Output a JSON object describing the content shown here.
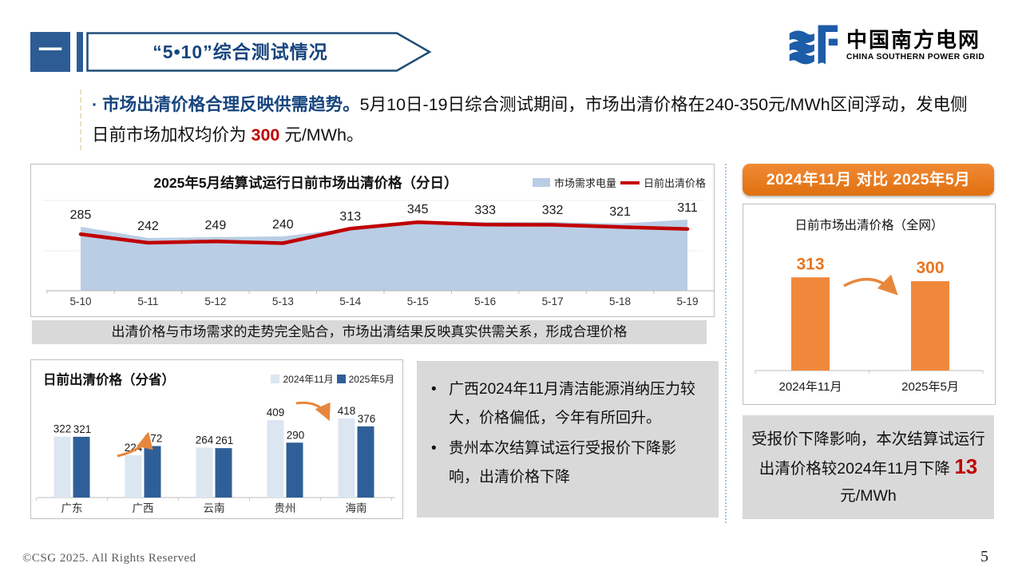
{
  "colors": {
    "dark_blue": "#17457E",
    "marker_blue": "#2D5C94",
    "brand_blue": "#1C5CA8",
    "red": "#C00000",
    "area_blue": "#B9CDE5",
    "bar_light": "#DCE6F1",
    "bar_dark": "#2F5F98",
    "orange": "#ED7D31",
    "orange_bar": "#F0883B",
    "arrow_orange": "#E8873C",
    "gray_box": "#D9D9D9"
  },
  "header": {
    "index_marker": "一",
    "title": "“5•10”综合测试情况"
  },
  "logo": {
    "name_zh": "中国南方电网",
    "name_en": "CHINA SOUTHERN POWER GRID"
  },
  "intro": {
    "bullet": "·",
    "lead": "市场出清价格合理反映供需趋势。",
    "text_before": "5月10日-19日综合测试期间，市场出清价格在240-350元/MWh区间浮动，发电侧日前市场加权均价为 ",
    "highlight_value": "300",
    "text_after": " 元/MWh。"
  },
  "strip_note": "出清价格与市场需求的走势完全贴合，市场出清结果反映真实供需关系，形成合理价格",
  "analysis": {
    "bullets": [
      "广西2024年11月清洁能源消纳压力较大，价格偏低，今年有所回升。",
      "贵州本次结算试运行受报价下降影响，出清价格下降"
    ]
  },
  "right_panel": {
    "banner": "2024年11月 对比 2025年5月",
    "conclusion_before": "受报价下降影响，本次结算试运行出清价格较2024年11月下降 ",
    "conclusion_value": "13",
    "conclusion_after": " 元/MWh"
  },
  "footer": {
    "copyright": "©CSG 2025. All Rights Reserved",
    "page_number": "5"
  },
  "chart_data": [
    {
      "id": "daily_clearing_price",
      "type": "area+line",
      "title": "2025年5月结算试运行日前市场出清价格（分日）",
      "categories": [
        "5-10",
        "5-11",
        "5-12",
        "5-13",
        "5-14",
        "5-15",
        "5-16",
        "5-17",
        "5-18",
        "5-19"
      ],
      "series": [
        {
          "name": "市场需求电量",
          "type": "area",
          "color": "#B9CDE5",
          "unlabeled": true,
          "values_estimated": [
            322,
            266,
            270,
            274,
            314,
            350,
            346,
            346,
            338,
            358
          ]
        },
        {
          "name": "日前出清价格",
          "type": "line",
          "color": "#C00000",
          "values": [
            285,
            242,
            249,
            240,
            313,
            345,
            333,
            332,
            321,
            311
          ]
        }
      ],
      "value_labels": "shown for 日前出清价格 (元/MWh)",
      "legend_position": "top-right",
      "grid": "faint horizontal"
    },
    {
      "id": "province_clearing_price",
      "type": "bar",
      "title": "日前出清价格（分省）",
      "categories": [
        "广东",
        "广西",
        "云南",
        "贵州",
        "海南"
      ],
      "series": [
        {
          "name": "2024年11月",
          "color": "#DCE6F1",
          "values": [
            322,
            224,
            264,
            409,
            418
          ]
        },
        {
          "name": "2025年5月",
          "color": "#2F5F98",
          "values": [
            321,
            272,
            261,
            290,
            376
          ]
        }
      ],
      "annotations": [
        {
          "type": "arrow-up",
          "category": "广西"
        },
        {
          "type": "arrow-down",
          "category": "贵州"
        }
      ],
      "legend_position": "top-right"
    },
    {
      "id": "grid_price_compare",
      "type": "bar",
      "title": "日前市场出清价格（全网）",
      "categories": [
        "2024年11月",
        "2025年5月"
      ],
      "values": [
        313,
        300
      ],
      "color": "#F0883B",
      "value_label_color": "#E87722",
      "annotations": [
        {
          "type": "arrow-down",
          "between": [
            "2024年11月",
            "2025年5月"
          ]
        }
      ]
    }
  ]
}
